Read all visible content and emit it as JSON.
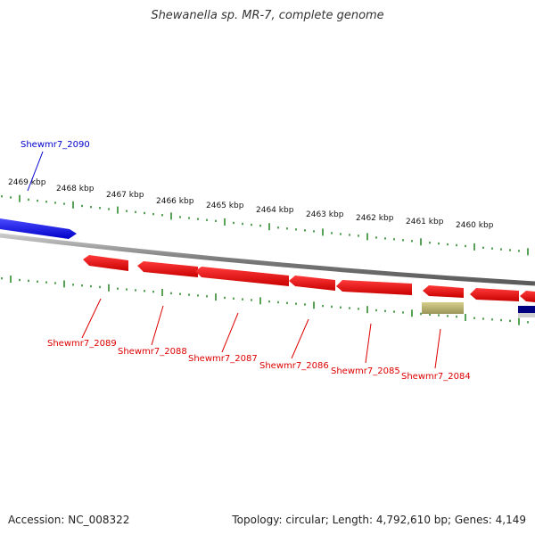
{
  "title": "Shewanella sp. MR-7, complete genome",
  "footer": {
    "accession": "Accession: NC_008322",
    "stats": "Topology: circular; Length: 4,792,610 bp; Genes: 4,149"
  },
  "scale": {
    "tick_labels": [
      "2469 kbp",
      "2468 kbp",
      "2467 kbp",
      "2466 kbp",
      "2465 kbp",
      "2464 kbp",
      "2463 kbp",
      "2462 kbp",
      "2461 kbp",
      "2460 kbp"
    ]
  },
  "genes": {
    "forward": [
      {
        "id": "Shewmr7_2090",
        "color": "#0000cc"
      }
    ],
    "reverse": [
      {
        "id": "Shewmr7_2089",
        "color": "#dd0000"
      },
      {
        "id": "Shewmr7_2088",
        "color": "#dd0000"
      },
      {
        "id": "Shewmr7_2087",
        "color": "#dd0000"
      },
      {
        "id": "Shewmr7_2086",
        "color": "#dd0000"
      },
      {
        "id": "Shewmr7_2085",
        "color": "#dd0000"
      },
      {
        "id": "Shewmr7_2084",
        "color": "#dd0000"
      }
    ]
  },
  "colors": {
    "forward_gene": "#1a1aff",
    "reverse_gene": "#ff0000",
    "backbone": "#808080",
    "tick": "#2e8b2e",
    "other_feature": "#b8b070"
  }
}
